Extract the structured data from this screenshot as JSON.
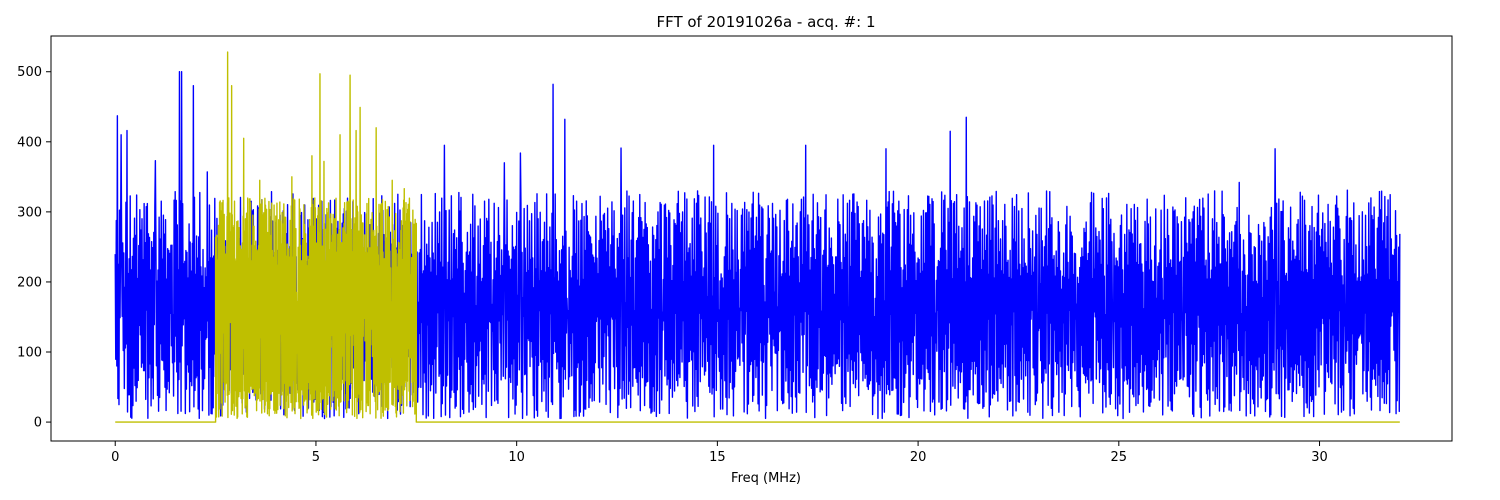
{
  "chart_data": {
    "type": "line",
    "title": "FFT of 20191026a - acq. #: 1",
    "xlabel": "Freq (MHz)",
    "ylabel": "",
    "xlim": [
      -1.6,
      33.3
    ],
    "ylim": [
      -27,
      551
    ],
    "x_ticks": [
      0,
      5,
      10,
      15,
      20,
      25,
      30
    ],
    "y_ticks": [
      0,
      100,
      200,
      300,
      400,
      500
    ],
    "grid": false,
    "legend": "none",
    "series": [
      {
        "color": "#0000ff",
        "x_range": [
          0,
          32
        ],
        "points": 2400,
        "noise_floor_range": [
          5,
          90
        ],
        "typical_peak_range": [
          200,
          330
        ],
        "peaks": [
          [
            0.05,
            437
          ],
          [
            0.15,
            410
          ],
          [
            0.3,
            416
          ],
          [
            1.0,
            373
          ],
          [
            1.6,
            500
          ],
          [
            1.65,
            500
          ],
          [
            1.95,
            480
          ],
          [
            2.3,
            357
          ],
          [
            8.2,
            395
          ],
          [
            9.7,
            370
          ],
          [
            10.1,
            384
          ],
          [
            10.9,
            482
          ],
          [
            11.2,
            432
          ],
          [
            12.6,
            391
          ],
          [
            14.9,
            395
          ],
          [
            17.2,
            395
          ],
          [
            19.2,
            390
          ],
          [
            20.8,
            415
          ],
          [
            21.2,
            435
          ],
          [
            28.0,
            342
          ],
          [
            28.9,
            390
          ],
          [
            30.7,
            331
          ],
          [
            31.5,
            329
          ]
        ]
      },
      {
        "color": "#bfbf00",
        "x_range": [
          0,
          32
        ],
        "band": [
          2.5,
          7.5
        ],
        "baseline": 0,
        "points": 700,
        "noise_floor_range": [
          5,
          60
        ],
        "typical_peak_range": [
          220,
          320
        ],
        "peaks": [
          [
            2.8,
            528
          ],
          [
            2.9,
            480
          ],
          [
            3.2,
            405
          ],
          [
            3.6,
            345
          ],
          [
            4.4,
            350
          ],
          [
            4.9,
            380
          ],
          [
            5.1,
            497
          ],
          [
            5.2,
            372
          ],
          [
            5.6,
            410
          ],
          [
            5.85,
            495
          ],
          [
            6.0,
            416
          ],
          [
            6.1,
            449
          ],
          [
            6.5,
            420
          ],
          [
            6.9,
            345
          ],
          [
            7.2,
            333
          ]
        ]
      }
    ]
  }
}
